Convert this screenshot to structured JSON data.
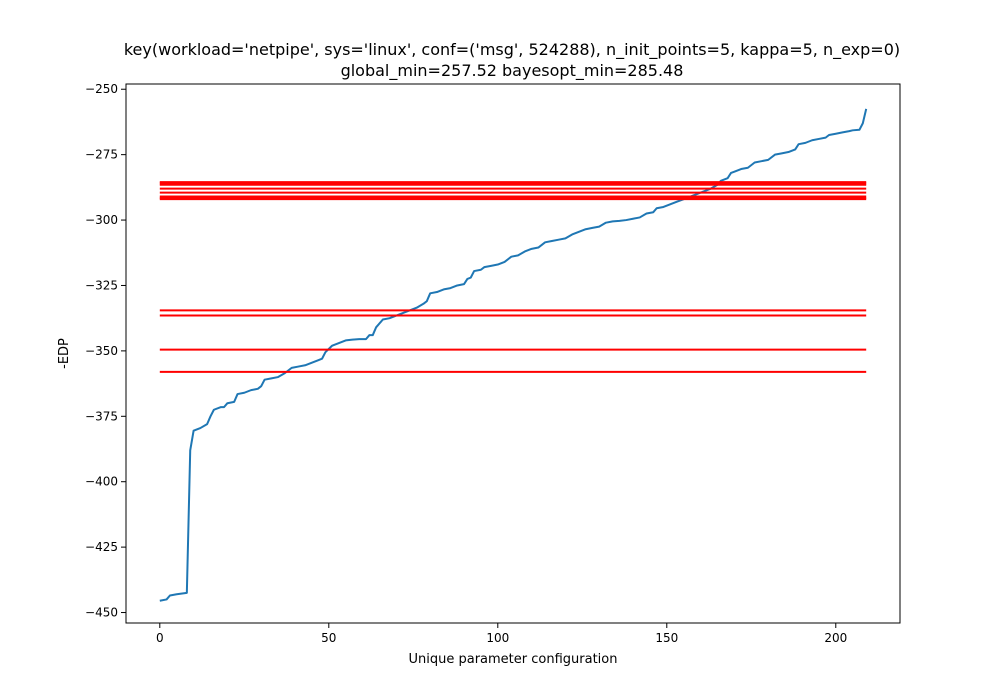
{
  "chart_data": {
    "type": "line",
    "title": "key(workload='netpipe', sys='linux', conf=('msg', 524288), n_init_points=5, kappa=5, n_exp=0)",
    "subtitle": "global_min=257.52 bayesopt_min=285.48",
    "xlabel": "Unique parameter configuration",
    "ylabel": "-EDP",
    "xlim": [
      -10,
      219
    ],
    "ylim": [
      -454,
      -248
    ],
    "xticks": [
      0,
      50,
      100,
      150,
      200
    ],
    "xtick_labels": [
      "0",
      "50",
      "100",
      "150",
      "200"
    ],
    "yticks": [
      -450,
      -425,
      -400,
      -375,
      -350,
      -325,
      -300,
      -275,
      -250
    ],
    "ytick_labels": [
      "−450",
      "−425",
      "−400",
      "−375",
      "−350",
      "−325",
      "−300",
      "−275",
      "−250"
    ],
    "grid": false,
    "legend": "none",
    "series": [
      {
        "color": "#1f77b4",
        "points": [
          [
            0,
            -445.5
          ],
          [
            2,
            -445
          ],
          [
            3,
            -443.5
          ],
          [
            5,
            -443
          ],
          [
            8,
            -442.5
          ],
          [
            9,
            -388
          ],
          [
            10,
            -380.5
          ],
          [
            12,
            -379.5
          ],
          [
            14,
            -378
          ],
          [
            15,
            -375
          ],
          [
            16,
            -372.5
          ],
          [
            18,
            -371.5
          ],
          [
            19,
            -371.5
          ],
          [
            20,
            -370
          ],
          [
            22,
            -369.5
          ],
          [
            23,
            -366.5
          ],
          [
            25,
            -366
          ],
          [
            27,
            -365
          ],
          [
            29,
            -364.5
          ],
          [
            30,
            -363.5
          ],
          [
            31,
            -361
          ],
          [
            33,
            -360.5
          ],
          [
            35,
            -360
          ],
          [
            37,
            -358.5
          ],
          [
            39,
            -356.5
          ],
          [
            41,
            -356
          ],
          [
            43,
            -355.5
          ],
          [
            45,
            -354.5
          ],
          [
            47,
            -353.5
          ],
          [
            48,
            -353
          ],
          [
            49,
            -350.5
          ],
          [
            51,
            -348
          ],
          [
            53,
            -347
          ],
          [
            55,
            -346
          ],
          [
            57,
            -345.7
          ],
          [
            59,
            -345.5
          ],
          [
            61,
            -345.5
          ],
          [
            62,
            -344
          ],
          [
            63,
            -344
          ],
          [
            64,
            -341
          ],
          [
            66,
            -338
          ],
          [
            68,
            -337.5
          ],
          [
            70,
            -336.5
          ],
          [
            72,
            -335.5
          ],
          [
            74,
            -334.5
          ],
          [
            76,
            -333.5
          ],
          [
            78,
            -332
          ],
          [
            79,
            -331
          ],
          [
            80,
            -328
          ],
          [
            82,
            -327.5
          ],
          [
            84,
            -326.5
          ],
          [
            86,
            -326
          ],
          [
            88,
            -325
          ],
          [
            90,
            -324.5
          ],
          [
            91,
            -322.5
          ],
          [
            92,
            -322
          ],
          [
            93,
            -319.5
          ],
          [
            95,
            -319
          ],
          [
            96,
            -318
          ],
          [
            98,
            -317.5
          ],
          [
            100,
            -317
          ],
          [
            102,
            -316
          ],
          [
            104,
            -314
          ],
          [
            106,
            -313.5
          ],
          [
            108,
            -312
          ],
          [
            110,
            -311
          ],
          [
            112,
            -310.5
          ],
          [
            114,
            -308.5
          ],
          [
            116,
            -308
          ],
          [
            118,
            -307.5
          ],
          [
            120,
            -307
          ],
          [
            122,
            -305.5
          ],
          [
            124,
            -304.5
          ],
          [
            126,
            -303.5
          ],
          [
            128,
            -303
          ],
          [
            130,
            -302.5
          ],
          [
            132,
            -301
          ],
          [
            134,
            -300.5
          ],
          [
            136,
            -300.3
          ],
          [
            138,
            -300
          ],
          [
            140,
            -299.5
          ],
          [
            142,
            -299
          ],
          [
            144,
            -297.5
          ],
          [
            146,
            -297
          ],
          [
            147,
            -295.5
          ],
          [
            149,
            -295
          ],
          [
            151,
            -294
          ],
          [
            153,
            -293
          ],
          [
            155,
            -292
          ],
          [
            157,
            -291
          ],
          [
            159,
            -290
          ],
          [
            161,
            -289
          ],
          [
            163,
            -288
          ],
          [
            165,
            -286.5
          ],
          [
            166,
            -285
          ],
          [
            168,
            -284
          ],
          [
            169,
            -282
          ],
          [
            170,
            -281.5
          ],
          [
            172,
            -280.5
          ],
          [
            174,
            -280
          ],
          [
            176,
            -278
          ],
          [
            178,
            -277.5
          ],
          [
            180,
            -277
          ],
          [
            182,
            -275
          ],
          [
            184,
            -274.5
          ],
          [
            186,
            -274
          ],
          [
            188,
            -273
          ],
          [
            189,
            -271
          ],
          [
            191,
            -270.5
          ],
          [
            193,
            -269.5
          ],
          [
            195,
            -269
          ],
          [
            197,
            -268.5
          ],
          [
            198,
            -267.5
          ],
          [
            200,
            -267
          ],
          [
            202,
            -266.5
          ],
          [
            204,
            -266
          ],
          [
            205,
            -265.7
          ],
          [
            207,
            -265.5
          ],
          [
            208,
            -263
          ],
          [
            209,
            -257.5
          ]
        ]
      }
    ],
    "hlines": {
      "color": "#ff0000",
      "xmin": 0,
      "xmax": 209,
      "y": [
        -285.5,
        -286.0,
        -286.5,
        -288.0,
        -289.5,
        -291.0,
        -291.5,
        -292.0,
        -334.5,
        -336.5,
        -349.5,
        -358.0
      ]
    }
  }
}
